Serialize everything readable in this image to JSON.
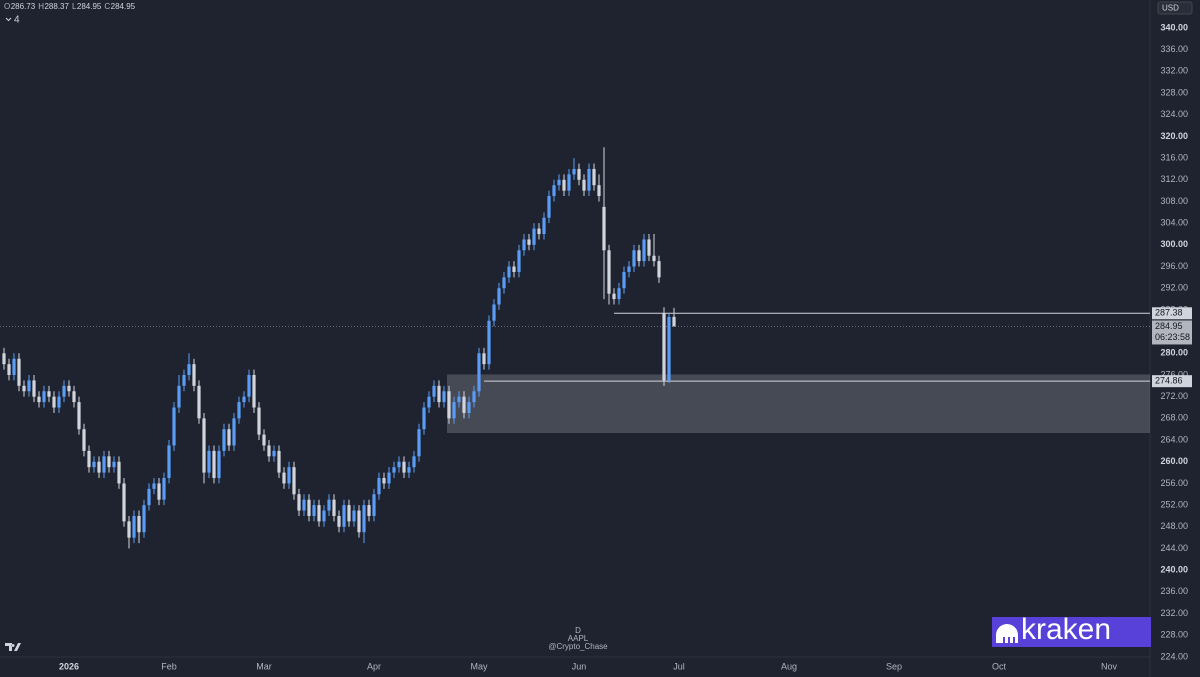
{
  "chart_data": {
    "type": "candlestick",
    "symbol": "AAPL",
    "interval": "D",
    "author": "@Crypto_Chase",
    "currency": "USD",
    "collapsed_indicators": 4,
    "logo_text": "kraken",
    "ohlc_header": [
      {
        "label": "O",
        "value": 286.73
      },
      {
        "label": "H",
        "value": 288.37
      },
      {
        "label": "L",
        "value": 284.95
      },
      {
        "label": "C",
        "value": 284.95
      }
    ],
    "up_color": "#5b9cf6",
    "down_color": "#d1d4dc",
    "ylim": [
      220.3,
      345.16
    ],
    "yticks": [
      {
        "value": 224,
        "label": "224.00"
      },
      {
        "value": 228,
        "label": "228.00"
      },
      {
        "value": 232,
        "label": "232.00"
      },
      {
        "value": 236,
        "label": "236.00"
      },
      {
        "value": 240,
        "label": "240.00"
      },
      {
        "value": 244,
        "label": "244.00"
      },
      {
        "value": 248,
        "label": "248.00"
      },
      {
        "value": 252,
        "label": "252.00"
      },
      {
        "value": 256,
        "label": "256.00"
      },
      {
        "value": 260,
        "label": "260.00"
      },
      {
        "value": 264,
        "label": "264.00"
      },
      {
        "value": 268,
        "label": "268.00"
      },
      {
        "value": 272,
        "label": "272.00"
      },
      {
        "value": 276,
        "label": "276.00"
      },
      {
        "value": 280,
        "label": "280.00"
      },
      {
        "value": 284,
        "label": "284.00"
      },
      {
        "value": 288,
        "label": "288.00"
      },
      {
        "value": 292,
        "label": "292.00"
      },
      {
        "value": 296,
        "label": "296.00"
      },
      {
        "value": 300,
        "label": "300.00"
      },
      {
        "value": 304,
        "label": "304.00"
      },
      {
        "value": 308,
        "label": "308.00"
      },
      {
        "value": 312,
        "label": "312.00"
      },
      {
        "value": 316,
        "label": "316.00"
      },
      {
        "value": 320,
        "label": "320.00"
      },
      {
        "value": 324,
        "label": "324.00"
      },
      {
        "value": 328,
        "label": "328.00"
      },
      {
        "value": 332,
        "label": "332.00"
      },
      {
        "value": 336,
        "label": "336.00"
      },
      {
        "value": 340,
        "label": "340.00"
      }
    ],
    "xticks": [
      {
        "value": 13,
        "label": "2026"
      },
      {
        "value": 33,
        "label": "Feb"
      },
      {
        "value": 52,
        "label": "Mar"
      },
      {
        "value": 74,
        "label": "Apr"
      },
      {
        "value": 95,
        "label": "May"
      },
      {
        "value": 115,
        "label": "Jun"
      },
      {
        "value": 135,
        "label": "Jul"
      },
      {
        "value": 157,
        "label": "Aug"
      },
      {
        "value": 178,
        "label": "Sep"
      },
      {
        "value": 199,
        "label": "Oct"
      },
      {
        "value": 221,
        "label": "Nov"
      }
    ],
    "open": [
      280,
      278,
      276,
      279,
      274,
      273,
      275,
      272,
      271,
      273,
      272,
      270,
      272,
      274,
      273,
      271,
      266,
      262,
      259,
      260,
      258,
      261,
      259,
      260,
      256,
      249,
      246,
      250,
      247,
      252,
      255,
      256,
      253,
      257,
      263,
      270,
      274,
      276,
      278,
      274,
      268,
      258,
      262,
      257,
      262,
      266,
      263,
      268,
      271,
      272,
      276,
      270,
      265,
      263,
      261,
      262,
      258,
      256,
      259,
      254,
      251,
      253,
      250,
      252,
      249,
      251,
      253,
      250,
      248,
      252,
      249,
      251,
      247,
      252,
      250,
      254,
      257,
      256,
      258,
      259,
      260,
      258,
      259,
      261,
      266,
      270,
      272,
      274,
      271,
      273,
      268,
      271,
      272,
      269,
      271,
      273,
      280,
      278,
      286,
      289,
      292,
      294,
      296,
      295,
      299,
      301,
      300,
      303,
      302,
      305,
      309,
      311,
      312,
      310,
      313,
      314,
      312,
      310,
      314,
      311,
      307,
      299,
      291,
      290,
      292,
      295,
      296,
      299,
      297,
      301,
      298,
      297,
      287.4,
      275,
      286.73
    ],
    "high": [
      281,
      279,
      280,
      280,
      275,
      276,
      276,
      273,
      274,
      274,
      273,
      273,
      275,
      275,
      274,
      272,
      267,
      263,
      261,
      261,
      262,
      262,
      261,
      261,
      257,
      250,
      251,
      251,
      253,
      256,
      257,
      257,
      258,
      264,
      271,
      276,
      277,
      280,
      279,
      275,
      269,
      263,
      263,
      263,
      267,
      267,
      269,
      272,
      273,
      277,
      277,
      271,
      266,
      264,
      263,
      263,
      259,
      260,
      260,
      255,
      254,
      254,
      253,
      253,
      252,
      254,
      254,
      251,
      253,
      253,
      252,
      252,
      253,
      253,
      255,
      258,
      258,
      259,
      260,
      261,
      261,
      260,
      262,
      267,
      271,
      273,
      275,
      275,
      274,
      274,
      272,
      273,
      273,
      272,
      274,
      281,
      281,
      287,
      290,
      293,
      295,
      297,
      297,
      300,
      302,
      302,
      304,
      304,
      306,
      310,
      312,
      313,
      313,
      314,
      316,
      315,
      313,
      315,
      315,
      313,
      318,
      300,
      292,
      293,
      296,
      297,
      300,
      300,
      302,
      302,
      302,
      298,
      288.5,
      287.3,
      288.37
    ],
    "low": [
      277,
      275,
      275,
      273,
      272,
      272,
      271,
      270,
      270,
      271,
      269,
      269,
      271,
      272,
      270,
      265,
      261,
      258,
      258,
      257,
      257,
      258,
      258,
      255,
      248,
      244,
      245,
      245,
      246,
      251,
      254,
      252,
      252,
      256,
      262,
      269,
      273,
      275,
      273,
      267,
      256,
      257,
      256,
      256,
      261,
      262,
      262,
      267,
      270,
      271,
      269,
      264,
      262,
      260,
      260,
      257,
      255,
      255,
      253,
      250,
      250,
      249,
      249,
      248,
      248,
      250,
      249,
      247,
      247,
      248,
      248,
      246,
      245,
      249,
      249,
      253,
      255,
      255,
      257,
      258,
      257,
      257,
      258,
      260,
      265,
      269,
      271,
      270,
      270,
      267,
      267,
      270,
      268,
      268,
      270,
      272,
      277,
      277,
      285,
      288,
      291,
      293,
      294,
      294,
      298,
      299,
      299,
      301,
      301,
      304,
      308,
      310,
      309,
      309,
      312,
      311,
      309,
      309,
      310,
      308,
      290,
      289,
      289,
      289,
      291,
      294,
      295,
      296,
      296,
      297,
      296,
      293,
      274,
      274.5,
      284.95
    ],
    "close": [
      278,
      276,
      279,
      274,
      273,
      275,
      272,
      271,
      273,
      272,
      270,
      272,
      274,
      273,
      271,
      266,
      262,
      259,
      260,
      258,
      261,
      259,
      260,
      256,
      249,
      246,
      250,
      247,
      252,
      255,
      256,
      253,
      257,
      263,
      270,
      274,
      276,
      278,
      274,
      268,
      258,
      262,
      257,
      262,
      266,
      263,
      268,
      271,
      272,
      276,
      270,
      265,
      263,
      261,
      262,
      258,
      256,
      259,
      254,
      251,
      253,
      250,
      252,
      249,
      251,
      253,
      250,
      248,
      252,
      249,
      251,
      247,
      252,
      250,
      254,
      257,
      256,
      258,
      259,
      260,
      258,
      259,
      261,
      266,
      270,
      272,
      274,
      271,
      273,
      268,
      271,
      272,
      269,
      271,
      273,
      280,
      278,
      286,
      289,
      292,
      294,
      296,
      295,
      299,
      301,
      300,
      303,
      302,
      305,
      309,
      311,
      312,
      310,
      313,
      314,
      312,
      310,
      314,
      311,
      309,
      299,
      291,
      290,
      292,
      295,
      296,
      299,
      297,
      301,
      298,
      297,
      294,
      275,
      286.7,
      284.95
    ],
    "levels": [
      {
        "value": 287.38,
        "start": 122
      },
      {
        "value": 274.86,
        "start": 96
      }
    ],
    "zone": {
      "low": 265.3,
      "high": 276.1,
      "start": 89
    },
    "current_price": 284.95,
    "countdown": "06:23:58"
  }
}
